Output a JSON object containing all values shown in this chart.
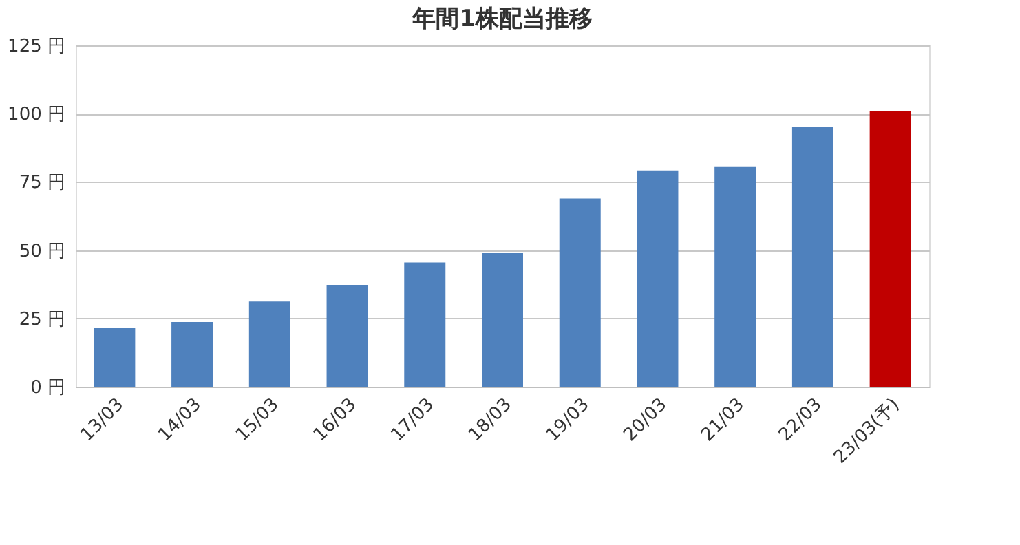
{
  "chart_data": {
    "type": "bar",
    "title": "年間1株配当推移",
    "categories": [
      "13/03",
      "14/03",
      "15/03",
      "16/03",
      "17/03",
      "18/03",
      "19/03",
      "20/03",
      "21/03",
      "22/03",
      "23/03(予)"
    ],
    "values": [
      21.4,
      23.7,
      31.2,
      37.3,
      45.5,
      49.1,
      68.9,
      79.2,
      80.7,
      95.1,
      100.9
    ],
    "colors": [
      "#4f81bd",
      "#4f81bd",
      "#4f81bd",
      "#4f81bd",
      "#4f81bd",
      "#4f81bd",
      "#4f81bd",
      "#4f81bd",
      "#4f81bd",
      "#4f81bd",
      "#c00000"
    ],
    "ylim": [
      0,
      125
    ],
    "yticks": [
      {
        "value": 0,
        "label": "0 円"
      },
      {
        "value": 25,
        "label": "25 円"
      },
      {
        "value": 50,
        "label": "50 円"
      },
      {
        "value": 75,
        "label": "75 円"
      },
      {
        "value": 100,
        "label": "100 円"
      },
      {
        "value": 125,
        "label": "125 円"
      }
    ],
    "grid": "y"
  }
}
